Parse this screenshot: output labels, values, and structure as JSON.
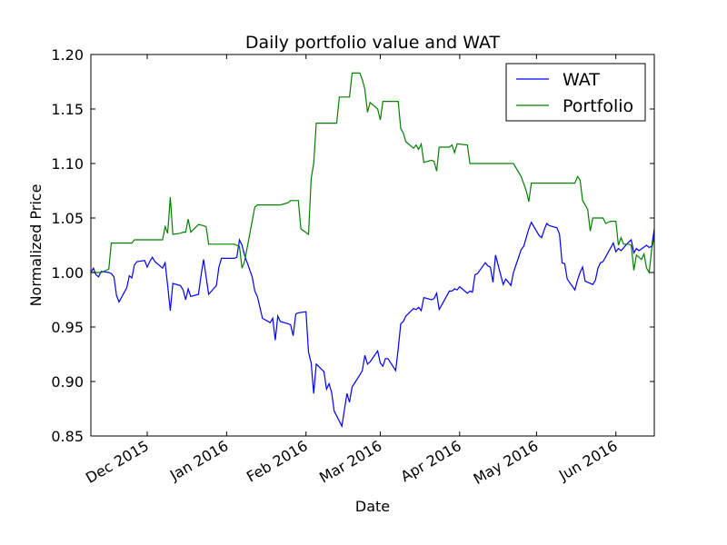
{
  "chart_data": {
    "type": "line",
    "title": "Daily portfolio value and WAT",
    "xlabel": "Date",
    "ylabel": "Normalized Price",
    "xlim": [
      "2015-11-09",
      "2016-06-16"
    ],
    "ylim": [
      0.85,
      1.2
    ],
    "y_ticks": [
      0.85,
      0.9,
      0.95,
      1.0,
      1.05,
      1.1,
      1.15,
      1.2
    ],
    "y_tick_labels": [
      "0.85",
      "0.90",
      "0.95",
      "1.00",
      "1.05",
      "1.10",
      "1.15",
      "1.20"
    ],
    "x_ticks": [
      "2015-12-01",
      "2016-01-01",
      "2016-02-01",
      "2016-03-01",
      "2016-04-01",
      "2016-05-01",
      "2016-06-01"
    ],
    "x_tick_labels": [
      "Dec 2015",
      "Jan 2016",
      "Feb 2016",
      "Mar 2016",
      "Apr 2016",
      "May 2016",
      "Jun 2016"
    ],
    "grid": false,
    "legend": "top-right",
    "series": [
      {
        "name": "WAT",
        "color": "#0000ff",
        "points": [
          [
            "2015-11-09",
            1.0
          ],
          [
            "2015-11-10",
            1.004
          ],
          [
            "2015-11-11",
            0.998
          ],
          [
            "2015-11-12",
            0.996
          ],
          [
            "2015-11-13",
            1.001
          ],
          [
            "2015-11-16",
            1.0
          ],
          [
            "2015-11-17",
            0.999
          ],
          [
            "2015-11-18",
            0.996
          ],
          [
            "2015-11-19",
            0.979
          ],
          [
            "2015-11-20",
            0.973
          ],
          [
            "2015-11-23",
            0.986
          ],
          [
            "2015-11-24",
            0.997
          ],
          [
            "2015-11-25",
            0.995
          ],
          [
            "2015-11-26",
            1.007
          ],
          [
            "2015-11-27",
            1.01
          ],
          [
            "2015-11-30",
            1.011
          ],
          [
            "2015-12-01",
            1.005
          ],
          [
            "2015-12-02",
            1.01
          ],
          [
            "2015-12-03",
            1.014
          ],
          [
            "2015-12-04",
            1.01
          ],
          [
            "2015-12-07",
            1.004
          ],
          [
            "2015-12-08",
            1.009
          ],
          [
            "2015-12-09",
            0.988
          ],
          [
            "2015-12-10",
            0.965
          ],
          [
            "2015-12-11",
            0.99
          ],
          [
            "2015-12-14",
            0.988
          ],
          [
            "2015-12-15",
            0.984
          ],
          [
            "2015-12-16",
            0.975
          ],
          [
            "2015-12-17",
            0.985
          ],
          [
            "2015-12-18",
            0.978
          ],
          [
            "2015-12-21",
            0.98
          ],
          [
            "2015-12-22",
            0.997
          ],
          [
            "2015-12-23",
            1.012
          ],
          [
            "2015-12-24",
            0.996
          ],
          [
            "2015-12-25",
            0.98
          ],
          [
            "2015-12-28",
            0.988
          ],
          [
            "2015-12-29",
            1.005
          ],
          [
            "2015-12-30",
            1.013
          ],
          [
            "2016-01-04",
            1.013
          ],
          [
            "2016-01-05",
            1.014
          ],
          [
            "2016-01-06",
            1.03
          ],
          [
            "2016-01-07",
            1.025
          ],
          [
            "2016-01-08",
            1.016
          ],
          [
            "2016-01-11",
            0.996
          ],
          [
            "2016-01-12",
            0.983
          ],
          [
            "2016-01-13",
            0.978
          ],
          [
            "2016-01-14",
            0.968
          ],
          [
            "2016-01-15",
            0.958
          ],
          [
            "2016-01-18",
            0.954
          ],
          [
            "2016-01-19",
            0.958
          ],
          [
            "2016-01-20",
            0.938
          ],
          [
            "2016-01-21",
            0.96
          ],
          [
            "2016-01-22",
            0.955
          ],
          [
            "2016-01-25",
            0.953
          ],
          [
            "2016-01-26",
            0.952
          ],
          [
            "2016-01-27",
            0.942
          ],
          [
            "2016-01-28",
            0.962
          ],
          [
            "2016-01-29",
            0.963
          ],
          [
            "2016-02-01",
            0.964
          ],
          [
            "2016-02-02",
            0.927
          ],
          [
            "2016-02-03",
            0.917
          ],
          [
            "2016-02-04",
            0.889
          ],
          [
            "2016-02-05",
            0.916
          ],
          [
            "2016-02-08",
            0.909
          ],
          [
            "2016-02-09",
            0.893
          ],
          [
            "2016-02-10",
            0.898
          ],
          [
            "2016-02-11",
            0.89
          ],
          [
            "2016-02-12",
            0.873
          ],
          [
            "2016-02-15",
            0.859
          ],
          [
            "2016-02-16",
            0.874
          ],
          [
            "2016-02-17",
            0.889
          ],
          [
            "2016-02-18",
            0.881
          ],
          [
            "2016-02-19",
            0.895
          ],
          [
            "2016-02-22",
            0.906
          ],
          [
            "2016-02-23",
            0.91
          ],
          [
            "2016-02-24",
            0.924
          ],
          [
            "2016-02-25",
            0.916
          ],
          [
            "2016-02-26",
            0.918
          ],
          [
            "2016-02-29",
            0.928
          ],
          [
            "2016-03-01",
            0.917
          ],
          [
            "2016-03-02",
            0.914
          ],
          [
            "2016-03-03",
            0.921
          ],
          [
            "2016-03-04",
            0.921
          ],
          [
            "2016-03-07",
            0.91
          ],
          [
            "2016-03-08",
            0.93
          ],
          [
            "2016-03-09",
            0.953
          ],
          [
            "2016-03-10",
            0.955
          ],
          [
            "2016-03-11",
            0.96
          ],
          [
            "2016-03-14",
            0.967
          ],
          [
            "2016-03-15",
            0.966
          ],
          [
            "2016-03-16",
            0.968
          ],
          [
            "2016-03-17",
            0.965
          ],
          [
            "2016-03-18",
            0.977
          ],
          [
            "2016-03-21",
            0.975
          ],
          [
            "2016-03-22",
            0.976
          ],
          [
            "2016-03-23",
            0.981
          ],
          [
            "2016-03-24",
            0.966
          ],
          [
            "2016-03-28",
            0.983
          ],
          [
            "2016-03-29",
            0.983
          ],
          [
            "2016-03-30",
            0.985
          ],
          [
            "2016-03-31",
            0.984
          ],
          [
            "2016-04-01",
            0.987
          ],
          [
            "2016-04-04",
            0.981
          ],
          [
            "2016-04-05",
            0.983
          ],
          [
            "2016-04-06",
            0.982
          ],
          [
            "2016-04-07",
            0.998
          ],
          [
            "2016-04-08",
            0.999
          ],
          [
            "2016-04-11",
            1.009
          ],
          [
            "2016-04-12",
            1.006
          ],
          [
            "2016-04-13",
            1.005
          ],
          [
            "2016-04-14",
            0.991
          ],
          [
            "2016-04-15",
            1.016
          ],
          [
            "2016-04-18",
            0.989
          ],
          [
            "2016-04-19",
            0.994
          ],
          [
            "2016-04-20",
            0.991
          ],
          [
            "2016-04-21",
            0.988
          ],
          [
            "2016-04-22",
            1.0
          ],
          [
            "2016-04-25",
            1.021
          ],
          [
            "2016-04-26",
            1.024
          ],
          [
            "2016-04-27",
            1.032
          ],
          [
            "2016-04-28",
            1.04
          ],
          [
            "2016-04-29",
            1.046
          ],
          [
            "2016-05-02",
            1.034
          ],
          [
            "2016-05-03",
            1.032
          ],
          [
            "2016-05-04",
            1.039
          ],
          [
            "2016-05-05",
            1.045
          ],
          [
            "2016-05-06",
            1.043
          ],
          [
            "2016-05-09",
            1.041
          ],
          [
            "2016-05-10",
            1.035
          ],
          [
            "2016-05-11",
            1.009
          ],
          [
            "2016-05-12",
            1.008
          ],
          [
            "2016-05-13",
            0.994
          ],
          [
            "2016-05-16",
            0.984
          ],
          [
            "2016-05-17",
            0.993
          ],
          [
            "2016-05-18",
            1.0
          ],
          [
            "2016-05-19",
            1.005
          ],
          [
            "2016-05-20",
            0.992
          ],
          [
            "2016-05-23",
            0.989
          ],
          [
            "2016-05-24",
            0.993
          ],
          [
            "2016-05-25",
            1.004
          ],
          [
            "2016-05-26",
            1.009
          ],
          [
            "2016-05-27",
            1.01
          ],
          [
            "2016-05-31",
            1.027
          ],
          [
            "2016-06-01",
            1.019
          ],
          [
            "2016-06-02",
            1.022
          ],
          [
            "2016-06-03",
            1.02
          ],
          [
            "2016-06-06",
            1.028
          ],
          [
            "2016-06-07",
            1.03
          ],
          [
            "2016-06-08",
            1.018
          ],
          [
            "2016-06-09",
            1.022
          ],
          [
            "2016-06-10",
            1.02
          ],
          [
            "2016-06-13",
            1.025
          ],
          [
            "2016-06-14",
            1.023
          ],
          [
            "2016-06-15",
            1.024
          ],
          [
            "2016-06-16",
            1.04
          ]
        ]
      },
      {
        "name": "Portfolio",
        "color": "#008000",
        "points": [
          [
            "2015-11-09",
            1.0
          ],
          [
            "2015-11-13",
            1.0
          ],
          [
            "2015-11-16",
            1.003
          ],
          [
            "2015-11-17",
            1.027
          ],
          [
            "2015-11-25",
            1.027
          ],
          [
            "2015-11-26",
            1.03
          ],
          [
            "2015-12-07",
            1.03
          ],
          [
            "2015-12-08",
            1.042
          ],
          [
            "2015-12-09",
            1.036
          ],
          [
            "2015-12-10",
            1.069
          ],
          [
            "2015-12-11",
            1.035
          ],
          [
            "2015-12-14",
            1.036
          ],
          [
            "2015-12-15",
            1.037
          ],
          [
            "2015-12-16",
            1.037
          ],
          [
            "2015-12-17",
            1.049
          ],
          [
            "2015-12-18",
            1.037
          ],
          [
            "2015-12-21",
            1.044
          ],
          [
            "2015-12-23",
            1.043
          ],
          [
            "2015-12-24",
            1.042
          ],
          [
            "2015-12-25",
            1.026
          ],
          [
            "2016-01-04",
            1.026
          ],
          [
            "2016-01-05",
            1.025
          ],
          [
            "2016-01-06",
            1.024
          ],
          [
            "2016-01-07",
            1.004
          ],
          [
            "2016-01-08",
            1.01
          ],
          [
            "2016-01-12",
            1.06
          ],
          [
            "2016-01-13",
            1.062
          ],
          [
            "2016-01-22",
            1.062
          ],
          [
            "2016-01-25",
            1.064
          ],
          [
            "2016-01-26",
            1.066
          ],
          [
            "2016-01-29",
            1.066
          ],
          [
            "2016-01-30",
            1.04
          ],
          [
            "2016-02-02",
            1.035
          ],
          [
            "2016-02-03",
            1.086
          ],
          [
            "2016-02-04",
            1.1
          ],
          [
            "2016-02-05",
            1.137
          ],
          [
            "2016-02-13",
            1.137
          ],
          [
            "2016-02-14",
            1.161
          ],
          [
            "2016-02-18",
            1.161
          ],
          [
            "2016-02-19",
            1.183
          ],
          [
            "2016-02-22",
            1.183
          ],
          [
            "2016-02-23",
            1.177
          ],
          [
            "2016-02-24",
            1.168
          ],
          [
            "2016-02-25",
            1.147
          ],
          [
            "2016-02-26",
            1.156
          ],
          [
            "2016-02-29",
            1.15
          ],
          [
            "2016-03-01",
            1.14
          ],
          [
            "2016-03-02",
            1.157
          ],
          [
            "2016-03-08",
            1.157
          ],
          [
            "2016-03-09",
            1.132
          ],
          [
            "2016-03-10",
            1.128
          ],
          [
            "2016-03-11",
            1.12
          ],
          [
            "2016-03-14",
            1.114
          ],
          [
            "2016-03-15",
            1.117
          ],
          [
            "2016-03-16",
            1.113
          ],
          [
            "2016-03-17",
            1.118
          ],
          [
            "2016-03-18",
            1.101
          ],
          [
            "2016-03-21",
            1.103
          ],
          [
            "2016-03-22",
            1.102
          ],
          [
            "2016-03-23",
            1.093
          ],
          [
            "2016-03-24",
            1.115
          ],
          [
            "2016-03-28",
            1.115
          ],
          [
            "2016-03-29",
            1.117
          ],
          [
            "2016-03-30",
            1.11
          ],
          [
            "2016-03-31",
            1.118
          ],
          [
            "2016-04-04",
            1.117
          ],
          [
            "2016-04-05",
            1.1
          ],
          [
            "2016-04-22",
            1.1
          ],
          [
            "2016-04-25",
            1.088
          ],
          [
            "2016-04-27",
            1.075
          ],
          [
            "2016-04-28",
            1.065
          ],
          [
            "2016-04-29",
            1.082
          ],
          [
            "2016-05-16",
            1.082
          ],
          [
            "2016-05-17",
            1.088
          ],
          [
            "2016-05-18",
            1.085
          ],
          [
            "2016-05-19",
            1.066
          ],
          [
            "2016-05-20",
            1.062
          ],
          [
            "2016-05-21",
            1.058
          ],
          [
            "2016-05-22",
            1.038
          ],
          [
            "2016-05-23",
            1.05
          ],
          [
            "2016-05-27",
            1.05
          ],
          [
            "2016-05-28",
            1.045
          ],
          [
            "2016-05-30",
            1.047
          ],
          [
            "2016-06-01",
            1.047
          ],
          [
            "2016-06-02",
            1.025
          ],
          [
            "2016-06-03",
            1.032
          ],
          [
            "2016-06-04",
            1.026
          ],
          [
            "2016-06-06",
            1.026
          ],
          [
            "2016-06-07",
            1.025
          ],
          [
            "2016-06-08",
            1.002
          ],
          [
            "2016-06-09",
            1.016
          ],
          [
            "2016-06-10",
            1.014
          ],
          [
            "2016-06-11",
            1.012
          ],
          [
            "2016-06-12",
            1.017
          ],
          [
            "2016-06-13",
            1.004
          ],
          [
            "2016-06-14",
            1.0
          ],
          [
            "2016-06-15",
            1.022
          ],
          [
            "2016-06-16",
            1.033
          ]
        ]
      }
    ]
  }
}
